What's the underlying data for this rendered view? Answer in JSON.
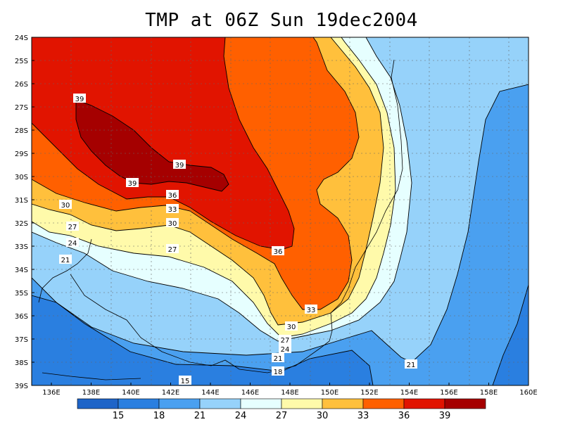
{
  "title": "TMP at 06Z Sun 19dec2004",
  "map": {
    "lat_labels": [
      "24S",
      "25S",
      "26S",
      "27S",
      "28S",
      "29S",
      "30S",
      "31S",
      "32S",
      "33S",
      "34S",
      "35S",
      "36S",
      "37S",
      "38S",
      "39S"
    ],
    "lon_labels": [
      "136E",
      "138E",
      "140E",
      "142E",
      "144E",
      "146E",
      "148E",
      "150E",
      "152E",
      "154E",
      "156E",
      "158E",
      "160E"
    ],
    "contour_labels": [
      "39",
      "39",
      "39",
      "36",
      "33",
      "30",
      "30",
      "27",
      "27",
      "24",
      "21",
      "36",
      "33",
      "30",
      "27",
      "24",
      "21",
      "18",
      "21",
      "15"
    ],
    "colorbar": {
      "colors": [
        "#1e64c8",
        "#2a7fe0",
        "#4aa0f0",
        "#96d2fa",
        "#e6ffff",
        "#fffaaa",
        "#ffc03c",
        "#ff6000",
        "#e11400",
        "#a50000"
      ],
      "labels": [
        "15",
        "18",
        "21",
        "24",
        "27",
        "30",
        "33",
        "36",
        "39"
      ]
    }
  }
}
